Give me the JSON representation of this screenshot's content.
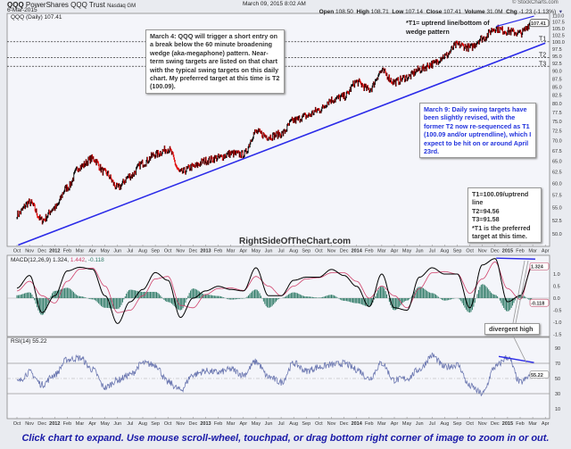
{
  "header": {
    "symbol": "QQQ",
    "name": "PowerShares QQQ Trust",
    "exchange": "Nasdaq GM",
    "date": "6-Mar-2015",
    "timestamp": "March 09, 2015 8:02 AM",
    "copyright": "© StockCharts.com",
    "ohlc": [
      {
        "k": "Open",
        "v": "108.50"
      },
      {
        "k": "High",
        "v": "108.71"
      },
      {
        "k": "Low",
        "v": "107.14"
      },
      {
        "k": "Close",
        "v": "107.41"
      },
      {
        "k": "Volume",
        "v": "31.0M"
      },
      {
        "k": "Chg",
        "v": "-1.23 (-1.13%)"
      }
    ],
    "chg_icon": "down-triangle-icon"
  },
  "caption": "Click chart to expand. Use mouse scroll-wheel, touchpad, or drag bottom right corner of image to zoom in or out.",
  "watermark": "RightSideOfTheChart.com",
  "annotations": {
    "march4": "March 4: QQQ will trigger a short entry on a break below the 60 minute broadening wedge (aka-megaphone) pattern. Near-term swing targets are listed on that chart with the typical swing targets on this daily chart. My preferred target at this time is T2 (100.09).",
    "t1_note_1": "*T1= uptrend line/bottom of",
    "t1_note_2": "wedge pattern",
    "march9": "March 9: Daily swing targets have been slightly revised, with the former T2 now re-sequenced as T1 (100.09 and/or uptrendline), which I expect to be hit on or around April 23rd.",
    "targets_box": [
      "T1=100.09/uptrend line",
      "T2=94.56",
      "T3=91.58",
      "*T1 is the preferred",
      "target at this time."
    ],
    "divergent": "divergent high"
  },
  "colors": {
    "up": "#000000",
    "down": "#e00000",
    "trendline": "#2a2ae8",
    "macd": "#000000",
    "signal": "#d0406a",
    "histogram": "#2e7a66",
    "rsi": "#6a76b0",
    "panel_bg": "#f4f5fa"
  },
  "chart_data": [
    {
      "type": "line",
      "title": "QQQ (Daily) 107.41",
      "scale": "log",
      "ylim": [
        47.5,
        110
      ],
      "yticks": [
        "110.0",
        "107.5",
        "105.0",
        "102.5",
        "100.0",
        "97.5",
        "95.0",
        "92.5",
        "90.0",
        "87.5",
        "85.0",
        "82.5",
        "80.0",
        "77.5",
        "75.0",
        "72.5",
        "70.0",
        "67.5",
        "65.0",
        "62.5",
        "60.0",
        "57.5",
        "55.0",
        "52.5",
        "50.0"
      ],
      "month_labels": [
        "Oct",
        "Nov",
        "Dec",
        "2012",
        "Feb",
        "Mar",
        "Apr",
        "May",
        "Jun",
        "Jul",
        "Aug",
        "Sep",
        "Oct",
        "Nov",
        "Dec",
        "2013",
        "Feb",
        "Mar",
        "Apr",
        "May",
        "Jun",
        "Jul",
        "Aug",
        "Sep",
        "Oct",
        "Nov",
        "Dec",
        "2014",
        "Feb",
        "Mar",
        "Apr",
        "May",
        "Jun",
        "Jul",
        "Aug",
        "Sep",
        "Oct",
        "Nov",
        "Dec",
        "2015",
        "Feb",
        "Mar",
        "Apr"
      ],
      "x_start": "2011-10",
      "close_monthly": [
        53.6,
        56,
        52.5,
        54.9,
        59.1,
        63.7,
        65.6,
        62.4,
        59.1,
        61.6,
        64.5,
        66.6,
        67.9,
        62.4,
        63.7,
        65.1,
        65.8,
        66.8,
        66.6,
        72.2,
        71,
        71.7,
        75.3,
        76.5,
        78.2,
        81.1,
        82.1,
        86.5,
        84.2,
        89.9,
        86.5,
        88,
        90.5,
        92.3,
        95,
        99,
        98,
        101.3,
        105,
        103.9,
        103.2,
        107.41
      ],
      "last": 107.41,
      "targets": [
        {
          "label": "T1",
          "value": 100.09
        },
        {
          "label": "T2",
          "value": 94.56
        },
        {
          "label": "T3",
          "value": 91.58
        }
      ],
      "uptrend_line": {
        "from": {
          "month": 0.1,
          "value": 48
        },
        "to": {
          "month": 42,
          "value": 99.6
        }
      },
      "wedge_top_line": {
        "from": {
          "month": 38.1,
          "value": 105.8
        },
        "to": {
          "month": 41.1,
          "value": 109.8
        }
      }
    },
    {
      "type": "line",
      "title": "MACD(12,26,9)",
      "values_label": [
        "1.324",
        "1.442",
        "-0.118"
      ],
      "yticks": [
        "1.0",
        "0.5",
        "0.0",
        "-0.5",
        "-1.0",
        "-1.5"
      ],
      "macd_monthly": [
        0.42,
        0.94,
        -0.6,
        0.1,
        1.13,
        1.28,
        1.2,
        0.1,
        -1.05,
        -0.15,
        0.36,
        1.06,
        0.74,
        -0.8,
        0,
        0.3,
        0.49,
        0.36,
        0.3,
        1.26,
        0.1,
        0.1,
        0.74,
        0.87,
        0.87,
        1.19,
        0.94,
        0.49,
        -0.35,
        1.0,
        -0.4,
        -0.5,
        0.87,
        1.26,
        1.0,
        1.0,
        -0.4,
        1.38,
        1.64,
        -0.15,
        0.1,
        1.324
      ],
      "signal_monthly": [
        0.3,
        0.7,
        0.1,
        -0.2,
        0.7,
        1.2,
        1.25,
        0.5,
        -0.6,
        -0.5,
        0.1,
        0.8,
        0.9,
        -0.3,
        -0.4,
        0.15,
        0.4,
        0.42,
        0.32,
        0.9,
        0.5,
        0.1,
        0.5,
        0.8,
        0.85,
        1.05,
        1.05,
        0.7,
        0.0,
        0.5,
        0.1,
        -0.4,
        0.4,
        1.05,
        1.1,
        1.0,
        0.2,
        0.8,
        1.5,
        0.4,
        -0.05,
        1.442
      ],
      "divergence_line": {
        "from": {
          "month": 38.1,
          "value": 1.66
        },
        "to": {
          "month": 41.2,
          "value": 1.62
        }
      }
    },
    {
      "type": "line",
      "title": "RSI(14)",
      "last": "55.22",
      "yticks": [
        "90",
        "70",
        "50",
        "30",
        "10"
      ],
      "overbought": 70,
      "oversold": 30,
      "rsi_monthly": [
        45,
        58,
        42,
        55,
        75,
        77,
        62,
        38,
        48,
        55,
        70,
        68,
        45,
        35,
        55,
        60,
        58,
        62,
        55,
        72,
        52,
        45,
        70,
        60,
        65,
        68,
        70,
        62,
        50,
        70,
        48,
        50,
        62,
        80,
        65,
        68,
        40,
        30,
        65,
        78,
        45,
        55.22
      ],
      "divergence_line": {
        "from": {
          "month": 38.3,
          "value": 79
        },
        "to": {
          "month": 41.1,
          "value": 71
        }
      }
    }
  ]
}
